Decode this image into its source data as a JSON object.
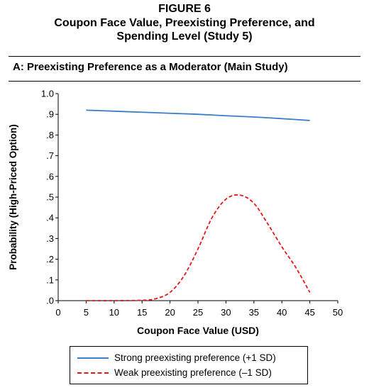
{
  "figure": {
    "label": "FIGURE 6",
    "title_line1": "Coupon Face Value, Preexisting Preference, and",
    "title_line2": "Spending Level (Study 5)"
  },
  "panel": {
    "title": "A: Preexisting Preference as a Moderator (Main Study)"
  },
  "colors": {
    "strong": "#3a7dc9",
    "weak": "#e8151b"
  },
  "chart_data": {
    "type": "line",
    "xlabel": "Coupon Face Value (USD)",
    "ylabel": "Probability (High-Priced Option)",
    "xlim": [
      0,
      50
    ],
    "ylim": [
      0,
      1
    ],
    "x_ticks": [
      "0",
      "5",
      "10",
      "15",
      "20",
      "25",
      "30",
      "35",
      "40",
      "45",
      "50"
    ],
    "y_ticks": [
      ".0",
      ".1",
      ".2",
      ".3",
      ".4",
      ".5",
      ".6",
      ".7",
      ".8",
      ".9",
      "1.0"
    ],
    "grid": false,
    "legend_position": "bottom",
    "series": [
      {
        "name": "Strong preexisting preference (+1 SD)",
        "style": "solid",
        "x": [
          5,
          10,
          15,
          20,
          25,
          30,
          35,
          40,
          45
        ],
        "y": [
          0.92,
          0.915,
          0.91,
          0.905,
          0.9,
          0.893,
          0.887,
          0.879,
          0.87
        ]
      },
      {
        "name": "Weak preexisting preference (–1 SD)",
        "style": "dashed",
        "x": [
          5,
          10,
          15,
          17.5,
          20,
          22.5,
          25,
          27.5,
          30,
          32.5,
          35,
          37.5,
          40,
          42.5,
          45
        ],
        "y": [
          0.0,
          0.0,
          0.002,
          0.01,
          0.04,
          0.12,
          0.25,
          0.4,
          0.49,
          0.51,
          0.47,
          0.37,
          0.26,
          0.16,
          0.04
        ]
      }
    ]
  }
}
